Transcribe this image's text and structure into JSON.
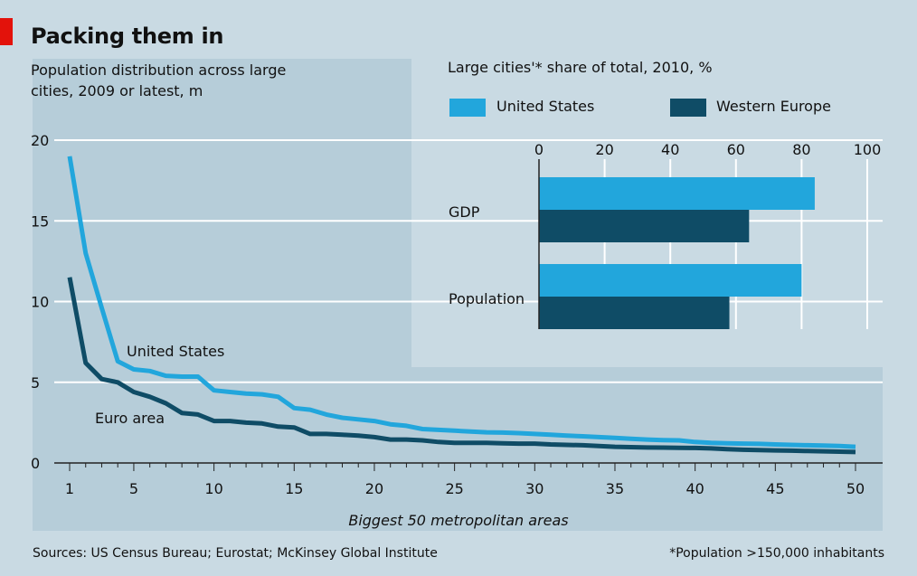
{
  "title": "Packing them in",
  "footer": {
    "source": "Sources: US Census Bureau; Eurostat; McKinsey Global Institute",
    "footnote": "*Population >150,000 inhabitants"
  },
  "colors": {
    "us": "#22a6dc",
    "europe": "#0f4c66",
    "panel": "#b6cdd9",
    "page": "#c9dae3",
    "accent": "#e3120b"
  },
  "chart_data": [
    {
      "type": "line",
      "title": "Population distribution across large cities, 2009 or latest, m",
      "xlabel": "Biggest 50 metropolitan areas",
      "ylabel": "",
      "xlim": [
        1,
        50
      ],
      "ylim": [
        0,
        20
      ],
      "xticks": [
        1,
        5,
        10,
        15,
        20,
        25,
        30,
        35,
        40,
        45,
        50
      ],
      "yticks": [
        0,
        5,
        10,
        15,
        20
      ],
      "grid": true,
      "series": [
        {
          "name": "United States",
          "x": [
            1,
            2,
            3,
            4,
            5,
            6,
            7,
            8,
            9,
            10,
            11,
            12,
            13,
            14,
            15,
            16,
            17,
            18,
            19,
            20,
            21,
            22,
            23,
            24,
            25,
            26,
            27,
            28,
            29,
            30,
            31,
            32,
            33,
            34,
            35,
            36,
            37,
            38,
            39,
            40,
            41,
            42,
            43,
            44,
            45,
            46,
            47,
            48,
            49,
            50
          ],
          "values": [
            19.0,
            13.0,
            9.6,
            6.3,
            5.8,
            5.7,
            5.4,
            5.35,
            5.35,
            4.5,
            4.4,
            4.3,
            4.25,
            4.1,
            3.4,
            3.3,
            3.0,
            2.8,
            2.7,
            2.6,
            2.4,
            2.3,
            2.1,
            2.05,
            2.0,
            1.95,
            1.9,
            1.88,
            1.85,
            1.8,
            1.75,
            1.7,
            1.65,
            1.6,
            1.55,
            1.5,
            1.45,
            1.42,
            1.4,
            1.3,
            1.25,
            1.22,
            1.2,
            1.18,
            1.15,
            1.12,
            1.1,
            1.08,
            1.05,
            1.0
          ]
        },
        {
          "name": "Euro area",
          "x": [
            1,
            2,
            3,
            4,
            5,
            6,
            7,
            8,
            9,
            10,
            11,
            12,
            13,
            14,
            15,
            16,
            17,
            18,
            19,
            20,
            21,
            22,
            23,
            24,
            25,
            26,
            27,
            28,
            29,
            30,
            31,
            32,
            33,
            34,
            35,
            36,
            37,
            38,
            39,
            40,
            41,
            42,
            43,
            44,
            45,
            46,
            47,
            48,
            49,
            50
          ],
          "values": [
            11.5,
            6.2,
            5.2,
            5.0,
            4.4,
            4.1,
            3.7,
            3.1,
            3.0,
            2.6,
            2.6,
            2.5,
            2.45,
            2.25,
            2.2,
            1.8,
            1.8,
            1.75,
            1.7,
            1.6,
            1.45,
            1.45,
            1.4,
            1.3,
            1.25,
            1.25,
            1.25,
            1.22,
            1.2,
            1.2,
            1.15,
            1.12,
            1.1,
            1.05,
            1.0,
            0.98,
            0.96,
            0.95,
            0.94,
            0.93,
            0.9,
            0.85,
            0.82,
            0.8,
            0.78,
            0.76,
            0.74,
            0.72,
            0.7,
            0.68
          ]
        }
      ]
    },
    {
      "type": "bar",
      "title": "Large cities'* share of total, 2010, %",
      "orientation": "horizontal",
      "categories": [
        "GDP",
        "Population"
      ],
      "xlim": [
        0,
        100
      ],
      "xticks": [
        0,
        20,
        40,
        60,
        80,
        100
      ],
      "legend": "top",
      "series": [
        {
          "name": "United States",
          "values": [
            84,
            80
          ]
        },
        {
          "name": "Western Europe",
          "values": [
            64,
            58
          ]
        }
      ]
    }
  ]
}
